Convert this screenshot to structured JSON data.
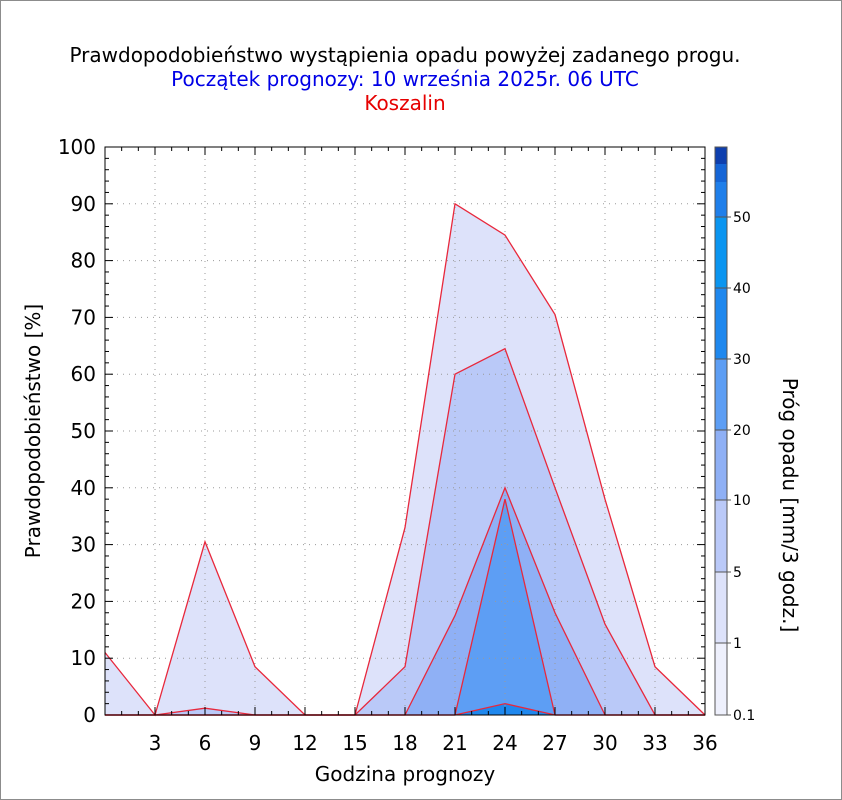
{
  "chart_data": {
    "type": "area",
    "title": "Prawdopodobieństwo wystąpienia opadu powyżej zadanego progu.",
    "subtitle": "Początek prognozy: 10 września 2025r. 06 UTC",
    "location": "Koszalin",
    "xlabel": "Godzina prognozy",
    "ylabel": "Prawdopodobieństwo [%]",
    "colorbar_label": "Próg opadu [mm/3 godz.]",
    "x": [
      0,
      3,
      6,
      9,
      12,
      15,
      18,
      21,
      24,
      27,
      30,
      33,
      36
    ],
    "xlim": [
      0,
      36
    ],
    "x_ticks": [
      3,
      6,
      9,
      12,
      15,
      18,
      21,
      24,
      27,
      30,
      33,
      36
    ],
    "ylim": [
      0,
      100
    ],
    "y_ticks": [
      0,
      10,
      20,
      30,
      40,
      50,
      60,
      70,
      80,
      90,
      100
    ],
    "grid": true,
    "series": [
      {
        "threshold": 0.1,
        "color": "#dde2fa",
        "values": [
          11,
          0,
          30.5,
          8.5,
          0,
          0,
          33,
          90,
          84.5,
          70.5,
          38,
          8.5,
          0
        ]
      },
      {
        "threshold": 1,
        "color": "#bac9f8",
        "values": [
          0,
          0,
          1.2,
          0,
          0,
          0,
          8.5,
          60,
          64.5,
          40,
          16,
          0,
          0
        ]
      },
      {
        "threshold": 5,
        "color": "#8fb0f5",
        "values": [
          0,
          0,
          0,
          0,
          0,
          0,
          0,
          17.5,
          40,
          18,
          0,
          0,
          0
        ]
      },
      {
        "threshold": 10,
        "color": "#5d9ef4",
        "values": [
          0,
          0,
          0,
          0,
          0,
          0,
          0,
          0,
          38,
          0,
          0,
          0,
          0
        ]
      },
      {
        "threshold": 20,
        "color": "#1f88ee",
        "values": [
          0,
          0,
          0,
          0,
          0,
          0,
          0,
          0,
          2,
          0,
          0,
          0,
          0
        ]
      }
    ],
    "colorbar": {
      "labels": [
        "0.1",
        "1",
        "5",
        "10",
        "20",
        "30",
        "40",
        "50"
      ],
      "colors": [
        "#eef0fc",
        "#dde2fa",
        "#bac9f8",
        "#8fb0f5",
        "#5d9ef4",
        "#1f88ee",
        "#0a95f0",
        "#1f7fea",
        "#1873e0",
        "#1565d6",
        "#1257cc",
        "#0e3fae"
      ]
    }
  }
}
